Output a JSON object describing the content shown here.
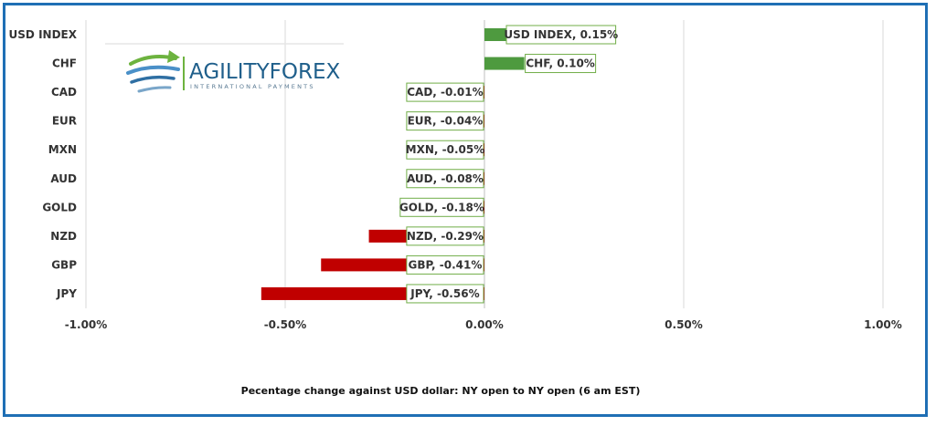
{
  "logo": {
    "name": "AGILITYFOREX",
    "tagline": "INTERNATIONAL PAYMENTS"
  },
  "colors": {
    "positive": "#4e9a3f",
    "negative": "#c00000",
    "frame": "#1f6fb5",
    "grid": "#d9d9d9",
    "label_border": "#70ad47"
  },
  "chart_data": {
    "type": "bar",
    "orientation": "horizontal",
    "categories": [
      "USD INDEX",
      "CHF",
      "CAD",
      "EUR",
      "MXN",
      "AUD",
      "GOLD",
      "NZD",
      "GBP",
      "JPY"
    ],
    "values": [
      0.15,
      0.1,
      -0.01,
      -0.04,
      -0.05,
      -0.08,
      -0.18,
      -0.29,
      -0.41,
      -0.56
    ],
    "data_labels": [
      "USD INDEX, 0.15%",
      "CHF, 0.10%",
      "CAD, -0.01%",
      "EUR, -0.04%",
      "MXN, -0.05%",
      "AUD, -0.08%",
      "GOLD, -0.18%",
      "NZD, -0.29%",
      "GBP, -0.41%",
      "JPY, -0.56%"
    ],
    "xlim": [
      -1.0,
      1.0
    ],
    "xticks": [
      -1.0,
      -0.5,
      0.0,
      0.5,
      1.0
    ],
    "xtick_labels": [
      "-1.00%",
      "-0.50%",
      "0.00%",
      "0.50%",
      "1.00%"
    ],
    "xlabel": "Pecentage change against USD dollar:  NY open to NY open  (6 am EST)",
    "grid": "vertical",
    "legend": "none"
  }
}
